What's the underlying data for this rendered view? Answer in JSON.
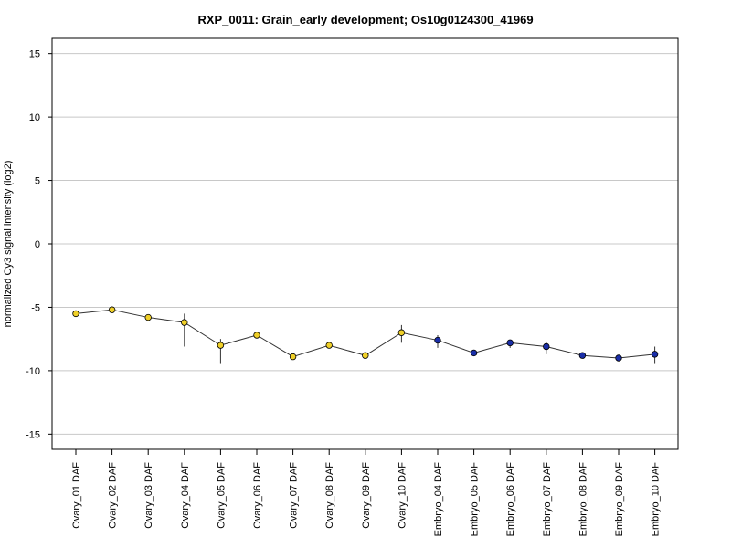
{
  "chart_data": {
    "type": "line",
    "title": "RXP_0011: Grain_early development; Os10g0124300_41969",
    "xlabel": "",
    "ylabel": "normalized Cy3 signal intensity (log2)",
    "ylim": [
      -16.2,
      16.2
    ],
    "yticks": [
      -15,
      -10,
      -5,
      0,
      5,
      10,
      15
    ],
    "grid": true,
    "legend": "none",
    "categories": [
      "Ovary_01 DAF",
      "Ovary_02 DAF",
      "Ovary_03 DAF",
      "Ovary_04 DAF",
      "Ovary_05 DAF",
      "Ovary_06 DAF",
      "Ovary_07 DAF",
      "Ovary_08 DAF",
      "Ovary_09 DAF",
      "Ovary_10 DAF",
      "Embryo_04 DAF",
      "Embryo_05 DAF",
      "Embryo_06 DAF",
      "Embryo_07 DAF",
      "Embryo_08 DAF",
      "Embryo_09 DAF",
      "Embryo_10 DAF"
    ],
    "values": [
      -5.5,
      -5.2,
      -5.8,
      -6.2,
      -8.0,
      -7.2,
      -8.9,
      -8.0,
      -8.8,
      -7.0,
      -7.6,
      -8.6,
      -7.8,
      -8.1,
      -8.8,
      -9.0,
      -8.7
    ],
    "err_low": [
      -5.3,
      -5.0,
      -5.6,
      -8.1,
      -9.4,
      -7.0,
      -9.1,
      -7.8,
      -9.0,
      -7.8,
      -8.2,
      -8.7,
      -8.2,
      -8.7,
      -9.0,
      -9.2,
      -9.4
    ],
    "err_high": [
      -5.7,
      -5.4,
      -6.0,
      -5.5,
      -7.5,
      -7.4,
      -8.7,
      -8.2,
      -8.6,
      -6.4,
      -7.2,
      -8.5,
      -7.6,
      -7.7,
      -8.6,
      -8.8,
      -8.1
    ],
    "point_colors": [
      "#f0d028",
      "#f0d028",
      "#f0d028",
      "#f0d028",
      "#f0d028",
      "#f0d028",
      "#f0d028",
      "#f0d028",
      "#f0d028",
      "#f0d028",
      "#1a2ea8",
      "#1a2ea8",
      "#1a2ea8",
      "#1a2ea8",
      "#1a2ea8",
      "#1a2ea8",
      "#1a2ea8"
    ],
    "grid_color": "#c8c8c8",
    "line_color": "#333333"
  }
}
